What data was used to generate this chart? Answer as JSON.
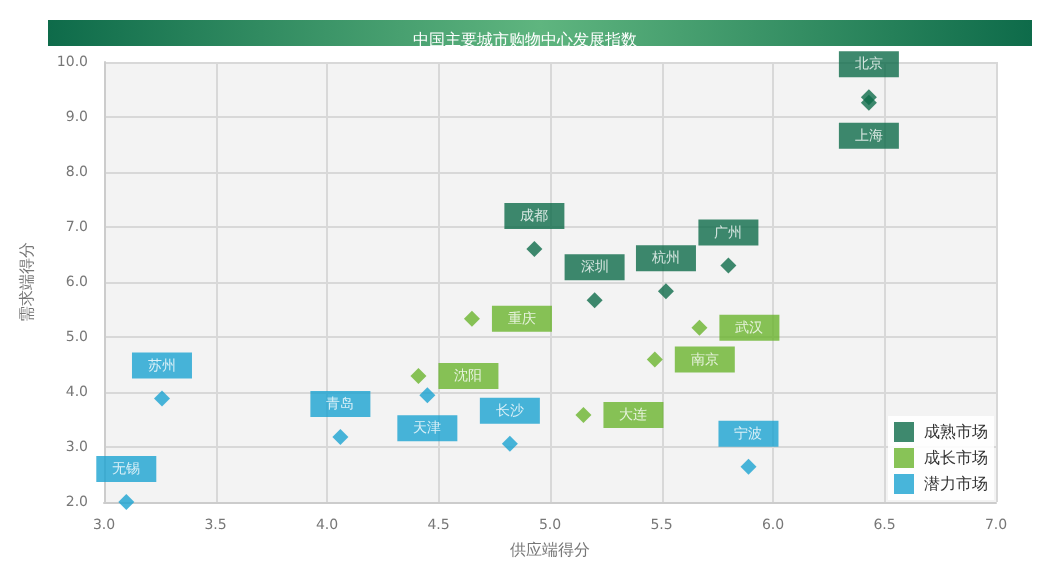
{
  "chart_data": {
    "type": "scatter",
    "title": "中国主要城市购物中心发展指数",
    "xlabel": "供应端得分",
    "ylabel": "需求端得分",
    "xlim": [
      3.0,
      7.0
    ],
    "xticks": [
      {
        "value": 3,
        "label": "3.0"
      },
      {
        "value": 3.5,
        "label": "3.5"
      },
      {
        "value": 4,
        "label": "4.0"
      },
      {
        "value": 4.5,
        "label": "4.5"
      },
      {
        "value": 5,
        "label": "5.0"
      },
      {
        "value": 5.5,
        "label": "5.5"
      },
      {
        "value": 6,
        "label": "6.0"
      },
      {
        "value": 6.5,
        "label": "6.5"
      },
      {
        "value": 7,
        "label": "7.0"
      }
    ],
    "ylim": [
      2.0,
      10.0
    ],
    "yticks": [
      {
        "value": 2,
        "label": "2.0"
      },
      {
        "value": 3,
        "label": "3.0"
      },
      {
        "value": 4,
        "label": "4.0"
      },
      {
        "value": 5,
        "label": "5.0"
      },
      {
        "value": 6,
        "label": "6.0"
      },
      {
        "value": 7,
        "label": "7.0"
      },
      {
        "value": 8,
        "label": "8.0"
      },
      {
        "value": 9,
        "label": "9.0"
      },
      {
        "value": 10,
        "label": "10.0"
      }
    ],
    "grid": true,
    "legend": "bottom right",
    "marker": "diamond",
    "series": [
      {
        "name": "成熟市场",
        "color": "#0e6b4a",
        "x": [
          6.43,
          6.43,
          4.93,
          5.2,
          5.52,
          5.8
        ],
        "values": [
          9.36,
          9.26,
          6.6,
          5.67,
          5.83,
          6.3
        ]
      },
      {
        "name": "成长市场",
        "color": "#6ab42d",
        "x": [
          4.65,
          4.41,
          5.67,
          5.47,
          5.15
        ],
        "values": [
          5.33,
          4.29,
          5.17,
          4.59,
          3.58
        ]
      },
      {
        "name": "潜力市场",
        "color": "#1aa3d1",
        "x": [
          4.45,
          3.26,
          4.06,
          4.82,
          3.1,
          5.89
        ],
        "values": [
          3.94,
          3.88,
          3.18,
          3.06,
          2.0,
          2.64
        ]
      }
    ],
    "annotations": [
      {
        "text": "北京",
        "x": 6.43,
        "y": 9.36
      },
      {
        "text": "上海",
        "x": 6.43,
        "y": 9.26
      },
      {
        "text": "成都",
        "x": 4.93,
        "y": 6.6
      },
      {
        "text": "深圳",
        "x": 5.2,
        "y": 5.67
      },
      {
        "text": "杭州",
        "x": 5.52,
        "y": 5.83
      },
      {
        "text": "广州",
        "x": 5.8,
        "y": 6.3
      },
      {
        "text": "重庆",
        "x": 4.65,
        "y": 5.33
      },
      {
        "text": "沈阳",
        "x": 4.41,
        "y": 4.29
      },
      {
        "text": "武汉",
        "x": 5.67,
        "y": 5.17
      },
      {
        "text": "南京",
        "x": 5.47,
        "y": 4.59
      },
      {
        "text": "大连",
        "x": 5.15,
        "y": 3.58
      },
      {
        "text": "天津",
        "x": 4.45,
        "y": 3.94
      },
      {
        "text": "苏州",
        "x": 3.26,
        "y": 3.88
      },
      {
        "text": "青岛",
        "x": 4.06,
        "y": 3.18
      },
      {
        "text": "长沙",
        "x": 4.82,
        "y": 3.06
      },
      {
        "text": "无锡",
        "x": 3.1,
        "y": 2.0
      },
      {
        "text": "宁波",
        "x": 5.89,
        "y": 2.64
      }
    ]
  }
}
